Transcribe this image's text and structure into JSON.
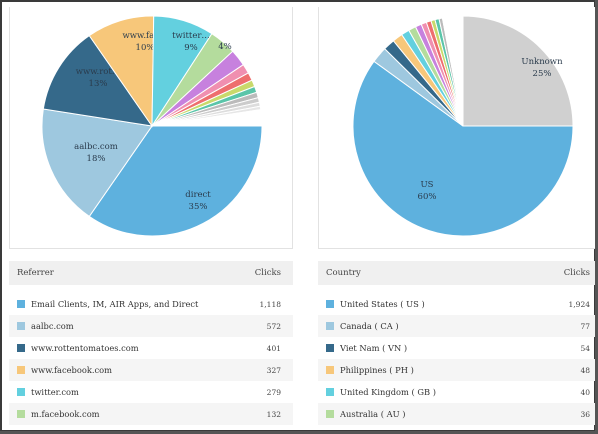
{
  "colors": {
    "blue": "#5eb1de",
    "lightblue": "#9ec8df",
    "darkblue": "#35698a",
    "orange": "#f7c77a",
    "cyan": "#63d0df",
    "green": "#b4dc9d",
    "purple": "#c781de",
    "pink": "#f08fb0",
    "red": "#ee6e6e",
    "yellowgreen": "#c9d96b",
    "teal": "#5ac5a9",
    "gray": "#d0d0d0"
  },
  "referrer_table": {
    "header_label": "Referrer",
    "header_clicks": "Clicks",
    "rows": [
      {
        "label": "Email Clients, IM, AIR Apps, and Direct",
        "clicks": "1,118",
        "color": "#5eb1de"
      },
      {
        "label": "aalbc.com",
        "clicks": "572",
        "color": "#9ec8df"
      },
      {
        "label": "www.rottentomatoes.com",
        "clicks": "401",
        "color": "#35698a"
      },
      {
        "label": "www.facebook.com",
        "clicks": "327",
        "color": "#f7c77a"
      },
      {
        "label": "twitter.com",
        "clicks": "279",
        "color": "#63d0df"
      },
      {
        "label": "m.facebook.com",
        "clicks": "132",
        "color": "#b4dc9d"
      }
    ]
  },
  "country_table": {
    "header_label": "Country",
    "header_clicks": "Clicks",
    "rows": [
      {
        "label": "United States ( US )",
        "clicks": "1,924",
        "color": "#5eb1de"
      },
      {
        "label": "Canada ( CA )",
        "clicks": "77",
        "color": "#9ec8df"
      },
      {
        "label": "Viet Nam ( VN )",
        "clicks": "54",
        "color": "#35698a"
      },
      {
        "label": "Philippines ( PH )",
        "clicks": "48",
        "color": "#f7c77a"
      },
      {
        "label": "United Kingdom ( GB )",
        "clicks": "40",
        "color": "#63d0df"
      },
      {
        "label": "Australia ( AU )",
        "clicks": "36",
        "color": "#b4dc9d"
      }
    ]
  },
  "chart_data": [
    {
      "type": "pie",
      "slices": [
        {
          "name": "direct",
          "label_text": "direct",
          "pct_text": "35%",
          "value": 35,
          "color": "#5eb1de"
        },
        {
          "name": "aalbc.com",
          "label_text": "aalbc.com",
          "pct_text": "18%",
          "value": 18,
          "color": "#9ec8df"
        },
        {
          "name": "www.rottentomatoes.com",
          "label_text": "www.rot…",
          "pct_text": "13%",
          "value": 13,
          "color": "#35698a"
        },
        {
          "name": "www.facebook.com",
          "label_text": "www.fac…",
          "pct_text": "10%",
          "value": 10,
          "color": "#f7c77a"
        },
        {
          "name": "twitter.com",
          "label_text": "twitter…",
          "pct_text": "9%",
          "value": 9,
          "color": "#63d0df"
        },
        {
          "name": "m.facebook.com",
          "label_text": "",
          "pct_text": "4%",
          "value": 4,
          "color": "#b4dc9d"
        },
        {
          "name": "other-1",
          "label_text": "",
          "pct_text": "",
          "value": 2.5,
          "color": "#c781de"
        },
        {
          "name": "other-2",
          "label_text": "",
          "pct_text": "",
          "value": 1.4,
          "color": "#f08fb0"
        },
        {
          "name": "other-3",
          "label_text": "",
          "pct_text": "",
          "value": 1.2,
          "color": "#ee6e6e"
        },
        {
          "name": "other-4",
          "label_text": "",
          "pct_text": "",
          "value": 1.0,
          "color": "#c9d96b"
        },
        {
          "name": "other-5",
          "label_text": "",
          "pct_text": "",
          "value": 0.9,
          "color": "#5ac5a9"
        },
        {
          "name": "other-6",
          "label_text": "",
          "pct_text": "",
          "value": 0.8,
          "color": "#bbbbbb"
        },
        {
          "name": "other-7",
          "label_text": "",
          "pct_text": "",
          "value": 0.7,
          "color": "#cccccc"
        },
        {
          "name": "other-8",
          "label_text": "",
          "pct_text": "",
          "value": 0.6,
          "color": "#dddddd"
        },
        {
          "name": "other-9",
          "label_text": "",
          "pct_text": "",
          "value": 0.5,
          "color": "#e6e6e6"
        },
        {
          "name": "other-10",
          "label_text": "",
          "pct_text": "",
          "value": 2.4,
          "color": "#ffffff"
        }
      ]
    },
    {
      "type": "pie",
      "slices": [
        {
          "name": "Unknown",
          "label_text": "Unknown",
          "pct_text": "25%",
          "value": 25,
          "color": "#d0d0d0"
        },
        {
          "name": "US",
          "label_text": "US",
          "pct_text": "60%",
          "value": 60,
          "color": "#5eb1de"
        },
        {
          "name": "Canada",
          "label_text": "",
          "pct_text": "",
          "value": 2.4,
          "color": "#9ec8df"
        },
        {
          "name": "Viet Nam",
          "label_text": "",
          "pct_text": "",
          "value": 1.7,
          "color": "#35698a"
        },
        {
          "name": "Philippines",
          "label_text": "",
          "pct_text": "",
          "value": 1.5,
          "color": "#f7c77a"
        },
        {
          "name": "United Kingdom",
          "label_text": "",
          "pct_text": "",
          "value": 1.2,
          "color": "#63d0df"
        },
        {
          "name": "Australia",
          "label_text": "",
          "pct_text": "",
          "value": 1.1,
          "color": "#b4dc9d"
        },
        {
          "name": "other-1",
          "label_text": "",
          "pct_text": "",
          "value": 0.9,
          "color": "#c781de"
        },
        {
          "name": "other-2",
          "label_text": "",
          "pct_text": "",
          "value": 0.8,
          "color": "#f08fb0"
        },
        {
          "name": "other-3",
          "label_text": "",
          "pct_text": "",
          "value": 0.7,
          "color": "#ee6e6e"
        },
        {
          "name": "other-4",
          "label_text": "",
          "pct_text": "",
          "value": 0.6,
          "color": "#c9d96b"
        },
        {
          "name": "other-5",
          "label_text": "",
          "pct_text": "",
          "value": 0.6,
          "color": "#5ac5a9"
        },
        {
          "name": "other-6",
          "label_text": "",
          "pct_text": "",
          "value": 0.5,
          "color": "#bbbbbb"
        },
        {
          "name": "other-7",
          "label_text": "",
          "pct_text": "",
          "value": 3.0,
          "color": "#ffffff"
        }
      ]
    }
  ]
}
